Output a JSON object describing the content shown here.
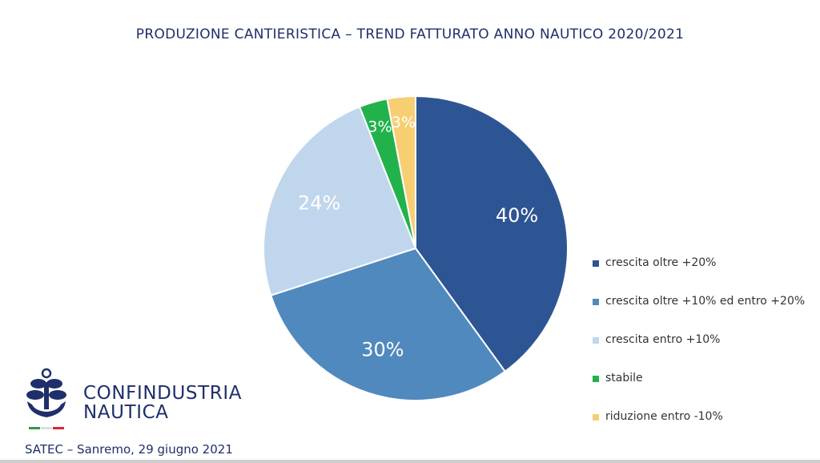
{
  "chart_data": {
    "type": "pie",
    "title": "PRODUZIONE CANTIERISTICA – TREND FATTURATO ANNO NAUTICO 2020/2021",
    "slices": [
      {
        "label": "crescita oltre +20%",
        "value": 40,
        "display": "40%",
        "color": "#2e5593"
      },
      {
        "label": "crescita oltre +10% ed entro +20%",
        "value": 30,
        "display": "30%",
        "color": "#5089bd"
      },
      {
        "label": "crescita entro +10%",
        "value": 24,
        "display": "24%",
        "color": "#c0d6ec"
      },
      {
        "label": "stabile",
        "value": 3,
        "display": "3%",
        "color": "#22b24c"
      },
      {
        "label": "riduzione entro -10%",
        "value": 3,
        "display": "3%",
        "color": "#f8ce72"
      }
    ],
    "legend_position": "right"
  },
  "logo": {
    "line1": "CONFINDUSTRIA",
    "line2": "NAUTICA",
    "icon": "anchor-propeller-icon",
    "flag_colors": [
      "#2a9c46",
      "#ffffff",
      "#d8262e"
    ]
  },
  "footer": {
    "text": "SATEC – Sanremo, 29 giugno 2021"
  }
}
